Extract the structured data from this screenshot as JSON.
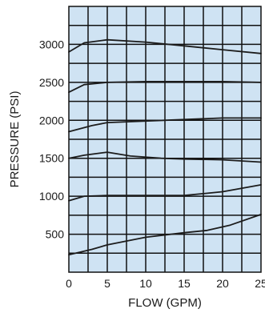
{
  "colors": {
    "plot_bg": "#cfe3f3",
    "grid": "#111111",
    "line": "#1c1c1c"
  },
  "chart_data": {
    "type": "line",
    "title": "",
    "xlabel": "FLOW (GPM)",
    "ylabel": "PRESSURE (PSI)",
    "xlim": [
      0,
      25
    ],
    "ylim": [
      0,
      3500
    ],
    "grid": true,
    "legend": "none",
    "x_ticks": [
      0,
      5,
      10,
      15,
      20,
      25
    ],
    "x_tick_labels": [
      "0",
      "5",
      "10",
      "15",
      "20",
      "25"
    ],
    "y_ticks": [
      500,
      1000,
      1500,
      2000,
      2500,
      3000
    ],
    "y_tick_labels": [
      "500",
      "1000",
      "1500",
      "2000",
      "2500",
      "3000"
    ],
    "series": [
      {
        "points": [
          [
            0,
            2900
          ],
          [
            2,
            3020
          ],
          [
            5,
            3060
          ],
          [
            10,
            3030
          ],
          [
            15,
            2980
          ],
          [
            20,
            2930
          ],
          [
            25,
            2880
          ]
        ]
      },
      {
        "points": [
          [
            0,
            2370
          ],
          [
            2,
            2470
          ],
          [
            5,
            2500
          ],
          [
            10,
            2510
          ],
          [
            15,
            2510
          ],
          [
            20,
            2510
          ],
          [
            25,
            2500
          ]
        ]
      },
      {
        "points": [
          [
            0,
            1850
          ],
          [
            3,
            1930
          ],
          [
            5,
            1970
          ],
          [
            10,
            1990
          ],
          [
            15,
            2010
          ],
          [
            20,
            2030
          ],
          [
            25,
            2030
          ]
        ]
      },
      {
        "points": [
          [
            0,
            1500
          ],
          [
            2,
            1540
          ],
          [
            5,
            1580
          ],
          [
            8,
            1530
          ],
          [
            12,
            1500
          ],
          [
            15,
            1490
          ],
          [
            20,
            1480
          ],
          [
            25,
            1450
          ]
        ]
      },
      {
        "points": [
          [
            0,
            940
          ],
          [
            2,
            1000
          ],
          [
            5,
            1010
          ],
          [
            10,
            1010
          ],
          [
            15,
            1010
          ],
          [
            20,
            1060
          ],
          [
            25,
            1150
          ]
        ]
      },
      {
        "points": [
          [
            0,
            230
          ],
          [
            3,
            300
          ],
          [
            5,
            360
          ],
          [
            10,
            460
          ],
          [
            15,
            520
          ],
          [
            18,
            550
          ],
          [
            21,
            620
          ],
          [
            25,
            760
          ]
        ]
      }
    ]
  }
}
